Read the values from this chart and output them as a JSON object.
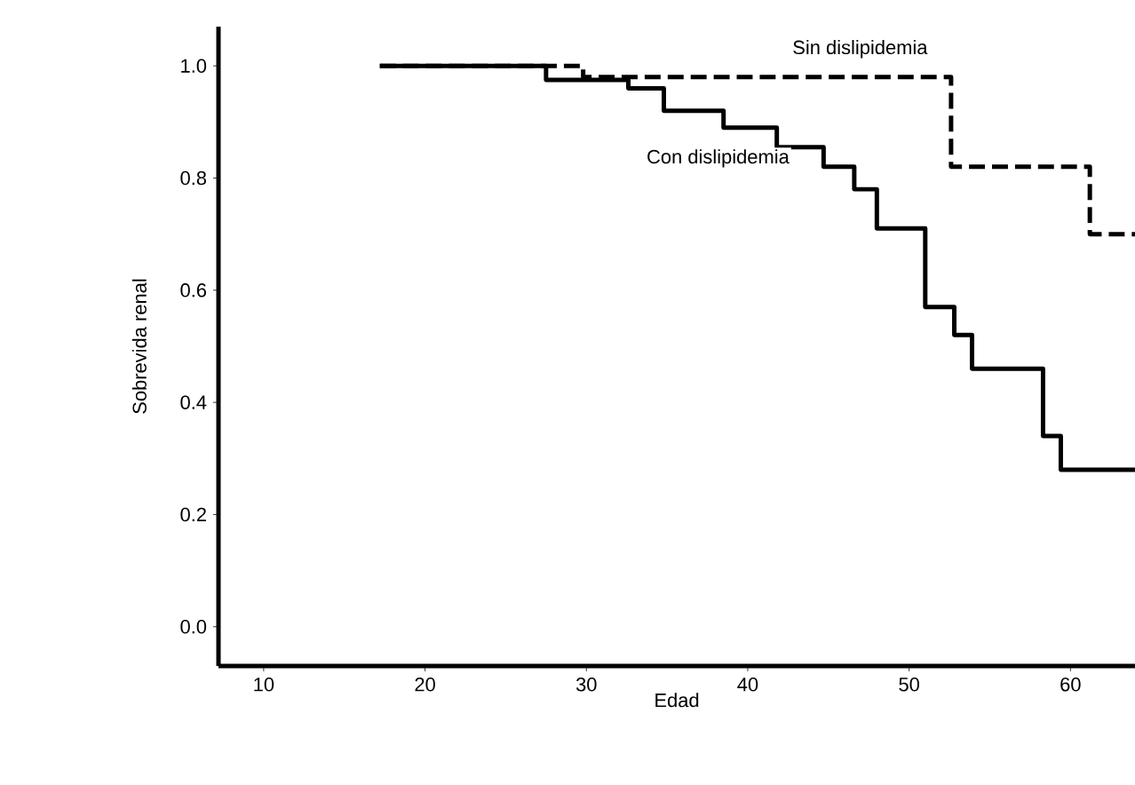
{
  "chart_data": {
    "type": "step",
    "xlabel": "Edad",
    "ylabel": "Sobrevida renal",
    "xlim": [
      7.2,
      64
    ],
    "ylim": [
      -0.07,
      1.07
    ],
    "xticks": [
      10,
      20,
      30,
      40,
      50,
      60
    ],
    "yticks": [
      {
        "value": 0,
        "label": "0.0"
      },
      {
        "value": 0.2,
        "label": "0.2"
      },
      {
        "value": 0.4,
        "label": "0.4"
      },
      {
        "value": 0.6,
        "label": "0.6"
      },
      {
        "value": 0.8,
        "label": "0.8"
      },
      {
        "value": 1,
        "label": "1.0"
      }
    ],
    "grid": false,
    "marker": "none",
    "series": [
      {
        "name": "Sin dislipidemia",
        "color": "#000000",
        "line_style": "dashed",
        "x": [
          17.2,
          29.8,
          52.6,
          61.2,
          64
        ],
        "values": [
          1.0,
          0.98,
          0.82,
          0.7,
          0.7
        ]
      },
      {
        "name": "Con dislipidemia",
        "color": "#000000",
        "line_style": "solid",
        "x": [
          17.2,
          27.5,
          32.6,
          34.8,
          38.5,
          41.8,
          44.7,
          46.6,
          48.0,
          51.0,
          52.8,
          53.9,
          58.3,
          59.4,
          64
        ],
        "values": [
          1.0,
          0.975,
          0.96,
          0.92,
          0.89,
          0.855,
          0.82,
          0.78,
          0.71,
          0.57,
          0.52,
          0.46,
          0.34,
          0.28,
          0.28
        ]
      }
    ]
  }
}
